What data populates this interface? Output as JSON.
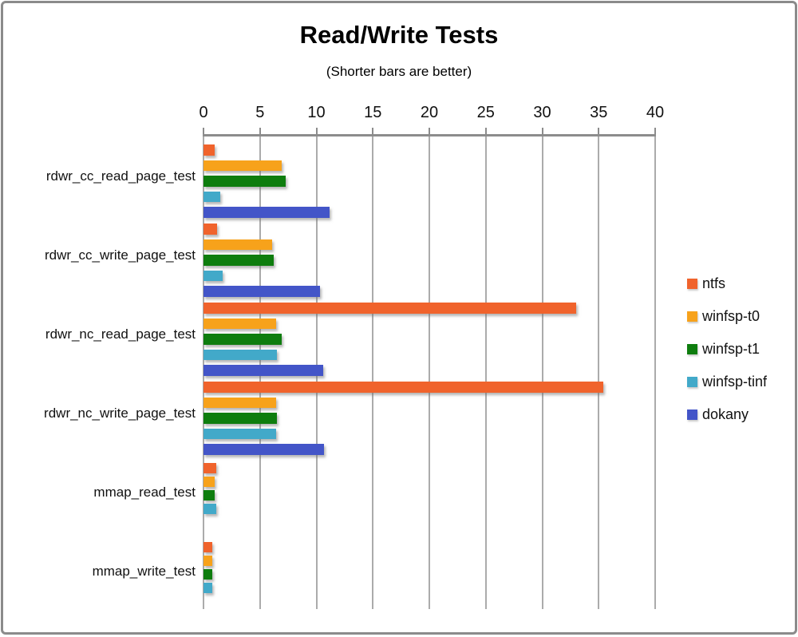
{
  "frame": {
    "border_color": "#8B8B8B",
    "background": "#FFFFFF"
  },
  "chart_data": {
    "type": "bar",
    "orientation": "horizontal",
    "title": "Read/Write Tests",
    "subtitle": "(Shorter bars are better)",
    "categories": [
      "rdwr_cc_read_page_test",
      "rdwr_cc_write_page_test",
      "rdwr_nc_read_page_test",
      "rdwr_nc_write_page_test",
      "mmap_read_test",
      "mmap_write_test"
    ],
    "series": [
      {
        "name": "ntfs",
        "color": "#F0632C",
        "values": [
          1.0,
          1.2,
          33.0,
          35.4,
          1.1,
          0.8
        ]
      },
      {
        "name": "winfsp-t0",
        "color": "#F7A21B",
        "values": [
          6.9,
          6.1,
          6.4,
          6.4,
          1.0,
          0.8
        ]
      },
      {
        "name": "winfsp-t1",
        "color": "#0E7D0E",
        "values": [
          7.3,
          6.2,
          6.9,
          6.5,
          1.0,
          0.8
        ]
      },
      {
        "name": "winfsp-tinf",
        "color": "#42A9C9",
        "values": [
          1.5,
          1.7,
          6.5,
          6.4,
          1.1,
          0.8
        ]
      },
      {
        "name": "dokany",
        "color": "#4355C8",
        "values": [
          11.2,
          10.3,
          10.6,
          10.7,
          null,
          null
        ]
      }
    ],
    "x_axis": {
      "min": 0,
      "max": 40,
      "tick_step": 5,
      "tick_labels": [
        "0",
        "5",
        "10",
        "15",
        "20",
        "25",
        "30",
        "35",
        "40"
      ]
    },
    "legend_position": "right",
    "grid": true,
    "colors": {
      "gridline": "#ABABAB",
      "axis_line": "#8C8C8C",
      "text": "#111111"
    }
  }
}
